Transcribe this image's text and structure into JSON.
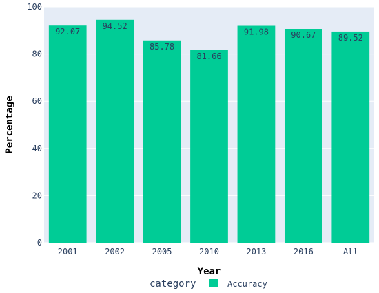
{
  "chart_data": {
    "type": "bar",
    "categories": [
      "2001",
      "2002",
      "2005",
      "2010",
      "2013",
      "2016",
      "All"
    ],
    "series": [
      {
        "name": "Accuracy",
        "values": [
          92.07,
          94.52,
          85.78,
          81.66,
          91.98,
          90.67,
          89.52
        ],
        "color": "#00cc96"
      }
    ],
    "data_labels": [
      "92.07",
      "94.52",
      "85.78",
      "81.66",
      "91.98",
      "90.67",
      "89.52"
    ],
    "xlabel": "Year",
    "ylabel": "Percentage",
    "ylim": [
      0,
      100
    ],
    "yticks": [
      0,
      20,
      40,
      60,
      80,
      100
    ],
    "grid": true,
    "legend_title": "category",
    "legend_placement": "bottom",
    "colors": {
      "plot_background": "#e5ecf6",
      "gridline": "#ffffff",
      "bar": "#00cc96",
      "text": "#2a3f5f"
    }
  }
}
